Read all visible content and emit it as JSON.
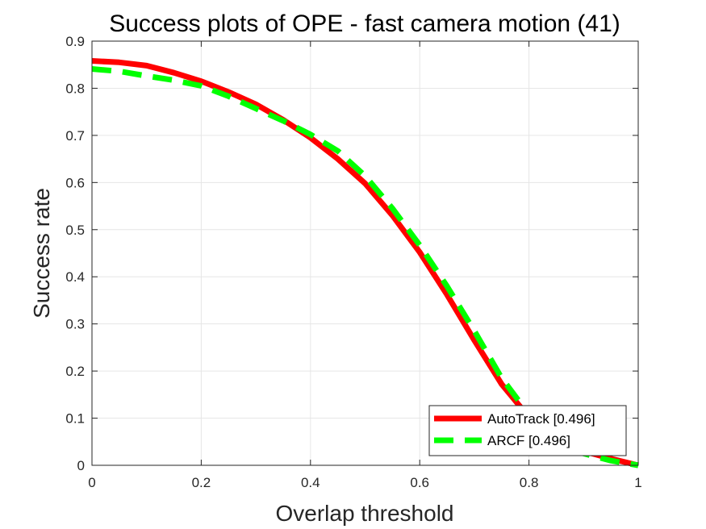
{
  "chart_data": {
    "type": "line",
    "title": "Success plots of OPE - fast camera motion (41)",
    "xlabel": "Overlap threshold",
    "ylabel": "Success rate",
    "xlim": [
      0,
      1
    ],
    "ylim": [
      0,
      0.9
    ],
    "xticks": [
      0,
      0.2,
      0.4,
      0.6,
      0.8,
      1
    ],
    "xtick_labels": [
      "0",
      "0.2",
      "0.4",
      "0.6",
      "0.8",
      "1"
    ],
    "yticks": [
      0,
      0.1,
      0.2,
      0.3,
      0.4,
      0.5,
      0.6,
      0.7,
      0.8,
      0.9
    ],
    "ytick_labels": [
      "0",
      "0.1",
      "0.2",
      "0.3",
      "0.4",
      "0.5",
      "0.6",
      "0.7",
      "0.8",
      "0.9"
    ],
    "grid": true,
    "legend_position": "bottom-right",
    "x": [
      0,
      0.05,
      0.1,
      0.15,
      0.2,
      0.25,
      0.3,
      0.35,
      0.4,
      0.45,
      0.5,
      0.55,
      0.6,
      0.65,
      0.7,
      0.75,
      0.8,
      0.85,
      0.9,
      0.95,
      1
    ],
    "series": [
      {
        "name": "AutoTrack [0.496]",
        "color": "#ff0000",
        "style": "solid",
        "values": [
          0.858,
          0.855,
          0.848,
          0.833,
          0.815,
          0.792,
          0.766,
          0.733,
          0.695,
          0.65,
          0.598,
          0.53,
          0.452,
          0.362,
          0.265,
          0.172,
          0.102,
          0.055,
          0.03,
          0.014,
          0.0
        ]
      },
      {
        "name": "ARCF [0.496]",
        "color": "#00ff00",
        "style": "dashed",
        "values": [
          0.841,
          0.836,
          0.826,
          0.817,
          0.805,
          0.783,
          0.757,
          0.731,
          0.702,
          0.667,
          0.614,
          0.545,
          0.467,
          0.38,
          0.285,
          0.185,
          0.108,
          0.055,
          0.025,
          0.01,
          0.0
        ]
      }
    ]
  }
}
